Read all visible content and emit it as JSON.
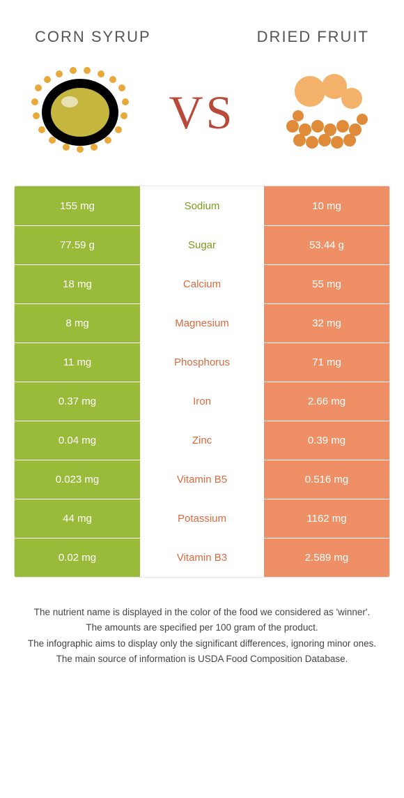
{
  "header": {
    "left_title": "CORN SYRUP",
    "right_title": "DRIED FRUIT",
    "vs_label": "VS"
  },
  "colors": {
    "left": "#9aba3a",
    "right": "#ee8f66",
    "mid_left_text": "#7a9c1f",
    "mid_right_text": "#d86a3f"
  },
  "rows": [
    {
      "left": "155 mg",
      "label": "Sodium",
      "right": "10 mg",
      "winner": "left"
    },
    {
      "left": "77.59 g",
      "label": "Sugar",
      "right": "53.44 g",
      "winner": "left"
    },
    {
      "left": "18 mg",
      "label": "Calcium",
      "right": "55 mg",
      "winner": "right"
    },
    {
      "left": "8 mg",
      "label": "Magnesium",
      "right": "32 mg",
      "winner": "right"
    },
    {
      "left": "11 mg",
      "label": "Phosphorus",
      "right": "71 mg",
      "winner": "right"
    },
    {
      "left": "0.37 mg",
      "label": "Iron",
      "right": "2.66 mg",
      "winner": "right"
    },
    {
      "left": "0.04 mg",
      "label": "Zinc",
      "right": "0.39 mg",
      "winner": "right"
    },
    {
      "left": "0.023 mg",
      "label": "Vitamin B5",
      "right": "0.516 mg",
      "winner": "right"
    },
    {
      "left": "44 mg",
      "label": "Potassium",
      "right": "1162 mg",
      "winner": "right"
    },
    {
      "left": "0.02 mg",
      "label": "Vitamin B3",
      "right": "2.589 mg",
      "winner": "right"
    }
  ],
  "footnotes": [
    "The nutrient name is displayed in the color of the food we considered as 'winner'.",
    "The amounts are specified per 100 gram of the product.",
    "The infographic aims to display only the significant differences, ignoring minor ones.",
    "The main source of information is USDA Food Composition Database."
  ]
}
